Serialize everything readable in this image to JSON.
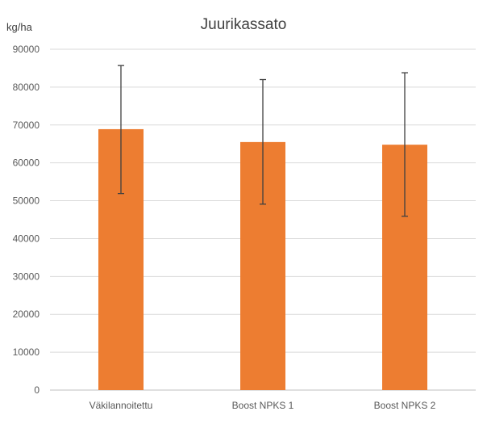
{
  "chart_data": {
    "type": "bar",
    "title": "Juurikassato",
    "ylabel": "kg/ha",
    "xlabel": "",
    "categories": [
      "Väkilannoitettu",
      "Boost NPKS 1",
      "Boost NPKS 2"
    ],
    "values": [
      68900,
      65500,
      64800
    ],
    "error_bars": [
      {
        "low": 51900,
        "high": 85700
      },
      {
        "low": 49100,
        "high": 82000
      },
      {
        "low": 45900,
        "high": 83800
      }
    ],
    "ylim": [
      0,
      90000
    ],
    "yticks": [
      0,
      10000,
      20000,
      30000,
      40000,
      50000,
      60000,
      70000,
      80000,
      90000
    ],
    "grid": true,
    "legend": "none",
    "colors": {
      "bar": "#ED7D31",
      "grid": "#D9D9D9",
      "error_bar": "#404040"
    }
  }
}
